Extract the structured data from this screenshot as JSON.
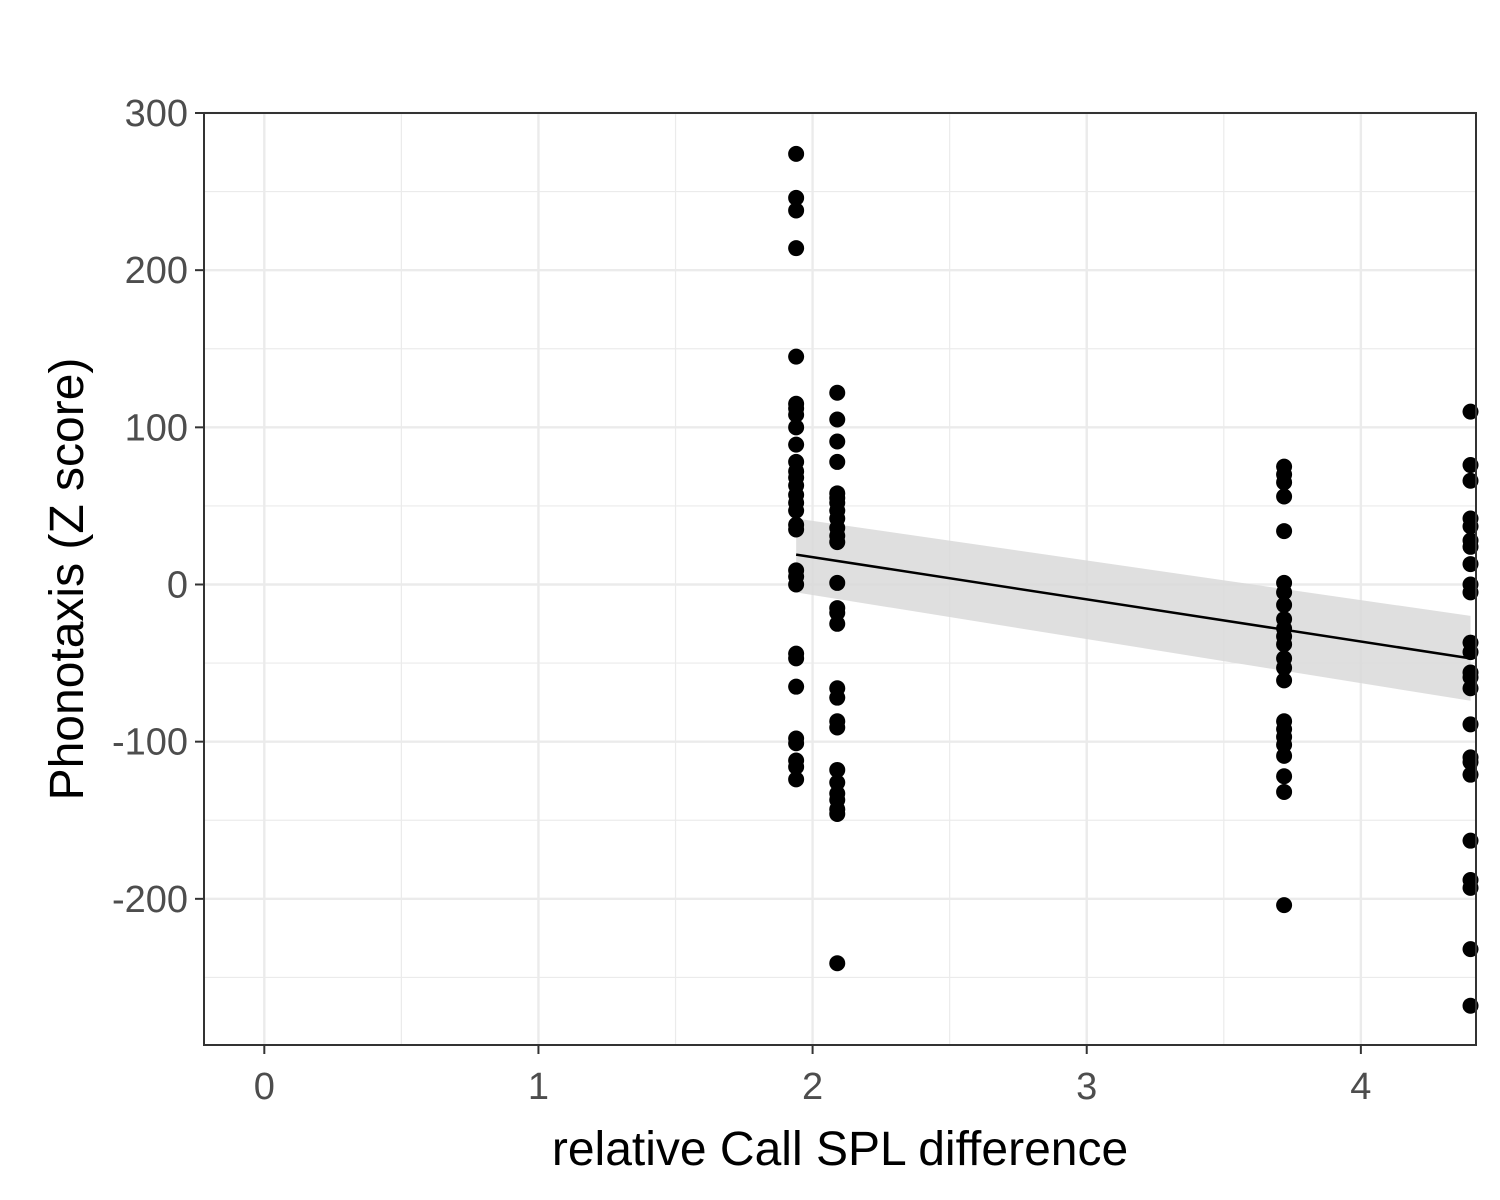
{
  "chart_data": {
    "type": "scatter",
    "xlabel": "relative Call SPL difference",
    "ylabel": "Phonotaxis (Z score)",
    "xlim": [
      -0.22,
      4.42
    ],
    "ylim": [
      -293,
      300
    ],
    "x_ticks": [
      0,
      1,
      2,
      3,
      4
    ],
    "y_ticks": [
      300,
      200,
      100,
      0,
      -100,
      -200
    ],
    "y_tick_labels": [
      "300",
      "200",
      "100",
      "0",
      "-100",
      "-200"
    ],
    "grid": true,
    "colors": {
      "points": "#000000",
      "ribbon": "#d9d9d9",
      "grid": "#ebebeb",
      "panel_border": "#333333"
    },
    "series": [
      {
        "points": [
          [
            1.94,
            274
          ],
          [
            1.94,
            246
          ],
          [
            1.94,
            238
          ],
          [
            1.94,
            214
          ],
          [
            1.94,
            145
          ],
          [
            1.94,
            115
          ],
          [
            1.94,
            112
          ],
          [
            1.94,
            108
          ],
          [
            1.94,
            100
          ],
          [
            1.94,
            89
          ],
          [
            1.94,
            78
          ],
          [
            1.94,
            72
          ],
          [
            1.94,
            68
          ],
          [
            1.94,
            63
          ],
          [
            1.94,
            57
          ],
          [
            1.94,
            52
          ],
          [
            1.94,
            47
          ],
          [
            1.94,
            38
          ],
          [
            1.94,
            35
          ],
          [
            1.94,
            9
          ],
          [
            1.94,
            5
          ],
          [
            1.94,
            0
          ],
          [
            1.94,
            -44
          ],
          [
            1.94,
            -47
          ],
          [
            1.94,
            -65
          ],
          [
            1.94,
            -98
          ],
          [
            1.94,
            -101
          ],
          [
            1.94,
            -112
          ],
          [
            1.94,
            -116
          ],
          [
            1.94,
            -124
          ],
          [
            2.09,
            122
          ],
          [
            2.09,
            105
          ],
          [
            2.09,
            91
          ],
          [
            2.09,
            78
          ],
          [
            2.09,
            58
          ],
          [
            2.09,
            55
          ],
          [
            2.09,
            52
          ],
          [
            2.09,
            47
          ],
          [
            2.09,
            42
          ],
          [
            2.09,
            36
          ],
          [
            2.09,
            31
          ],
          [
            2.09,
            27
          ],
          [
            2.09,
            1
          ],
          [
            2.09,
            -15
          ],
          [
            2.09,
            -18
          ],
          [
            2.09,
            -25
          ],
          [
            2.09,
            -66
          ],
          [
            2.09,
            -72
          ],
          [
            2.09,
            -87
          ],
          [
            2.09,
            -91
          ],
          [
            2.09,
            -118
          ],
          [
            2.09,
            -126
          ],
          [
            2.09,
            -133
          ],
          [
            2.09,
            -137
          ],
          [
            2.09,
            -143
          ],
          [
            2.09,
            -146
          ],
          [
            2.09,
            -241
          ],
          [
            3.72,
            75
          ],
          [
            3.72,
            70
          ],
          [
            3.72,
            65
          ],
          [
            3.72,
            56
          ],
          [
            3.72,
            34
          ],
          [
            3.72,
            1
          ],
          [
            3.72,
            -5
          ],
          [
            3.72,
            -13
          ],
          [
            3.72,
            -22
          ],
          [
            3.72,
            -28
          ],
          [
            3.72,
            -33
          ],
          [
            3.72,
            -38
          ],
          [
            3.72,
            -47
          ],
          [
            3.72,
            -53
          ],
          [
            3.72,
            -61
          ],
          [
            3.72,
            -87
          ],
          [
            3.72,
            -92
          ],
          [
            3.72,
            -97
          ],
          [
            3.72,
            -102
          ],
          [
            3.72,
            -109
          ],
          [
            3.72,
            -122
          ],
          [
            3.72,
            -132
          ],
          [
            3.72,
            -204
          ],
          [
            4.4,
            110
          ],
          [
            4.4,
            76
          ],
          [
            4.4,
            66
          ],
          [
            4.4,
            42
          ],
          [
            4.4,
            37
          ],
          [
            4.4,
            28
          ],
          [
            4.4,
            24
          ],
          [
            4.4,
            13
          ],
          [
            4.4,
            0
          ],
          [
            4.4,
            -5
          ],
          [
            4.4,
            -37
          ],
          [
            4.4,
            -43
          ],
          [
            4.4,
            -56
          ],
          [
            4.4,
            -59
          ],
          [
            4.4,
            -66
          ],
          [
            4.4,
            -89
          ],
          [
            4.4,
            -110
          ],
          [
            4.4,
            -113
          ],
          [
            4.4,
            -121
          ],
          [
            4.4,
            -163
          ],
          [
            4.4,
            -188
          ],
          [
            4.4,
            -193
          ],
          [
            4.4,
            -232
          ],
          [
            4.4,
            -268
          ]
        ]
      }
    ],
    "trend_line": {
      "x": [
        1.94,
        4.4
      ],
      "y": [
        19,
        -47
      ],
      "ci_upper": [
        42,
        -20
      ],
      "ci_lower": [
        -5,
        -74
      ]
    }
  }
}
